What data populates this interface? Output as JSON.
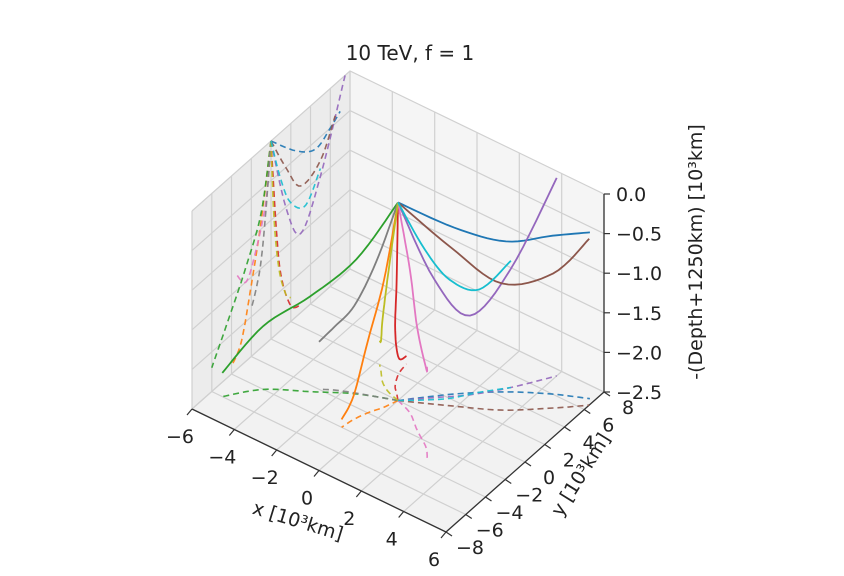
{
  "chart_data": {
    "type": "line",
    "projection": "3d",
    "title": "10 TeV, f = 1",
    "xlabel": "x [10³km]",
    "ylabel": "y [10³km]",
    "zlabel": "-(Depth+1250km) [10³km]",
    "xticks": [
      "−6",
      "−4",
      "−2",
      "0",
      "2",
      "4",
      "6"
    ],
    "yticks": [
      "−8",
      "−6",
      "−4",
      "−2",
      "0",
      "2",
      "4",
      "6",
      "8"
    ],
    "zticks": [
      "−2.5",
      "−2.0",
      "−1.5",
      "−1.0",
      "−0.5",
      "0.0"
    ],
    "xlim": [
      -6,
      6
    ],
    "ylim": [
      -8,
      8
    ],
    "zlim": [
      -2.5,
      0
    ],
    "grid": true,
    "legend": "none",
    "line_style_note": "solid lines are 3D trajectories; dashed lines are their projections onto the wall planes",
    "colors": [
      "#1f77b4",
      "#ff7f0e",
      "#2ca02c",
      "#d62728",
      "#9467bd",
      "#8c564b",
      "#e377c2",
      "#7f7f7f",
      "#bcbd22",
      "#17becf"
    ],
    "series": [
      {
        "color": "#1f77b4",
        "x": [
          0.0,
          1.5,
          3.0,
          4.5,
          5.8
        ],
        "y": [
          0.0,
          2.5,
          4.5,
          6.0,
          7.0
        ],
        "z": [
          0.0,
          -0.4,
          -0.6,
          -0.5,
          -0.4
        ]
      },
      {
        "color": "#ff7f0e",
        "x": [
          0.0,
          -0.2,
          -0.5,
          -0.7,
          -0.8
        ],
        "y": [
          0.0,
          -1.0,
          -2.0,
          -3.0,
          -4.0
        ],
        "z": [
          0.0,
          -0.9,
          -1.6,
          -2.2,
          -2.4
        ]
      },
      {
        "color": "#2ca02c",
        "x": [
          0.0,
          -1.5,
          -3.0,
          -4.5,
          -5.5
        ],
        "y": [
          0.0,
          -1.0,
          -2.5,
          -4.0,
          -6.0
        ],
        "z": [
          0.0,
          -0.8,
          -1.3,
          -1.7,
          -2.2
        ]
      },
      {
        "color": "#d62728",
        "x": [
          0.0,
          -0.3,
          -0.6,
          -0.9,
          -1.0
        ],
        "y": [
          0.0,
          0.5,
          1.0,
          2.0,
          3.0
        ],
        "z": [
          0.0,
          -1.1,
          -1.8,
          -2.3,
          -2.4
        ]
      },
      {
        "color": "#9467bd",
        "x": [
          0.0,
          1.0,
          2.0,
          3.0,
          4.0
        ],
        "y": [
          0.0,
          1.5,
          3.0,
          5.0,
          7.5
        ],
        "z": [
          0.0,
          -1.0,
          -1.5,
          -1.0,
          0.0
        ]
      },
      {
        "color": "#8c564b",
        "x": [
          0.0,
          1.8,
          3.5,
          5.0,
          6.0
        ],
        "y": [
          0.0,
          1.5,
          3.0,
          5.0,
          6.5
        ],
        "z": [
          0.0,
          -0.5,
          -0.9,
          -0.8,
          -0.4
        ]
      },
      {
        "color": "#e377c2",
        "x": [
          0.0,
          0.8,
          1.6,
          2.5,
          3.0
        ],
        "y": [
          0.0,
          -0.5,
          -1.5,
          -2.5,
          -3.5
        ],
        "z": [
          0.0,
          -0.7,
          -1.2,
          -1.5,
          -1.3
        ]
      },
      {
        "color": "#7f7f7f",
        "x": [
          0.0,
          -0.8,
          -1.6,
          -2.3,
          -2.8
        ],
        "y": [
          0.0,
          -0.5,
          -1.0,
          -1.5,
          -2.0
        ],
        "z": [
          0.0,
          -0.8,
          -1.4,
          -1.7,
          -1.9
        ]
      },
      {
        "color": "#bcbd22",
        "x": [
          0.0,
          -0.6,
          -1.1,
          -1.5,
          -1.8
        ],
        "y": [
          0.0,
          0.3,
          0.8,
          1.5,
          2.0
        ],
        "z": [
          0.0,
          -1.0,
          -1.7,
          -2.1,
          -2.2
        ]
      },
      {
        "color": "#17becf",
        "x": [
          0.0,
          0.8,
          1.5,
          2.2,
          3.0
        ],
        "y": [
          0.0,
          1.0,
          2.0,
          3.5,
          5.0
        ],
        "z": [
          0.0,
          -0.6,
          -1.0,
          -1.2,
          -0.9
        ]
      }
    ]
  }
}
